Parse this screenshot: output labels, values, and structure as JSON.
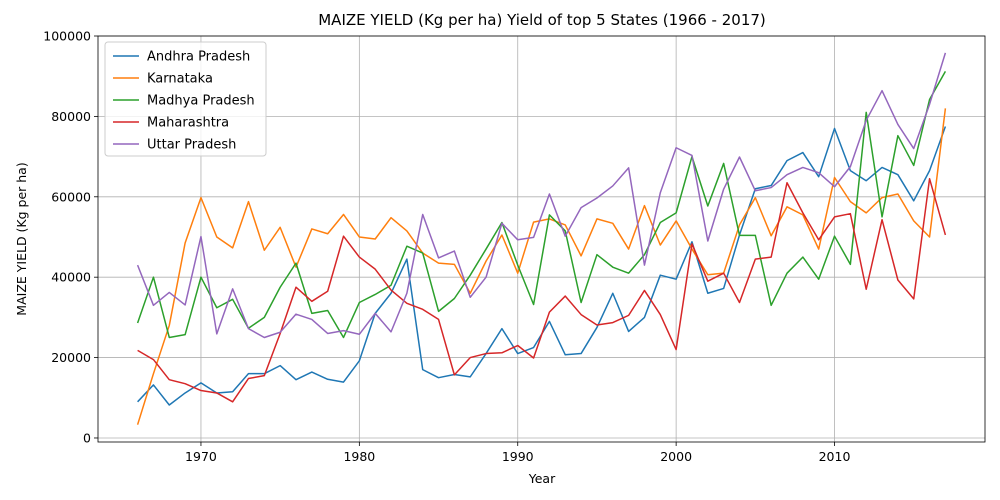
{
  "chart_data": {
    "type": "line",
    "title": "MAIZE YIELD (Kg per ha) Yield of top 5 States (1966 - 2017)",
    "xlabel": "Year",
    "ylabel": "MAIZE YIELD (Kg per ha)",
    "xlim": [
      1963.5,
      2019.5
    ],
    "ylim": [
      -1000,
      100000
    ],
    "xticks": [
      1970,
      1980,
      1990,
      2000,
      2010
    ],
    "yticks": [
      0,
      20000,
      40000,
      60000,
      80000,
      100000
    ],
    "grid": true,
    "legend_position": "top-left",
    "x": [
      1966,
      1967,
      1968,
      1969,
      1970,
      1971,
      1972,
      1973,
      1974,
      1975,
      1976,
      1977,
      1978,
      1979,
      1980,
      1981,
      1982,
      1983,
      1984,
      1985,
      1986,
      1987,
      1988,
      1989,
      1990,
      1991,
      1992,
      1993,
      1994,
      1995,
      1996,
      1997,
      1998,
      1999,
      2000,
      2001,
      2002,
      2003,
      2004,
      2005,
      2006,
      2007,
      2008,
      2009,
      2010,
      2011,
      2012,
      2013,
      2014,
      2015,
      2016,
      2017
    ],
    "series": [
      {
        "name": "Andhra Pradesh",
        "color": "#1f77b4",
        "values": [
          9000,
          13200,
          8200,
          11200,
          13700,
          11200,
          11500,
          16000,
          16000,
          18000,
          14500,
          16400,
          14600,
          13900,
          19200,
          31000,
          36000,
          44500,
          17000,
          15000,
          15800,
          15200,
          21000,
          27200,
          21000,
          22500,
          29000,
          20700,
          21000,
          27500,
          36000,
          26500,
          30000,
          40500,
          39500,
          48800,
          36000,
          37200,
          50500,
          62000,
          62800,
          69000,
          71000,
          65000,
          77000,
          66500,
          64000,
          67300,
          65500,
          59000,
          66500,
          77500
        ]
      },
      {
        "name": "Karnataka",
        "color": "#ff7f0e",
        "values": [
          3300,
          16000,
          28000,
          48500,
          59800,
          50000,
          47300,
          58800,
          46700,
          52400,
          42500,
          52000,
          50800,
          55600,
          50000,
          49500,
          54800,
          51500,
          46000,
          43500,
          43200,
          36000,
          44000,
          50500,
          41000,
          53700,
          54500,
          53000,
          45300,
          54500,
          53400,
          47000,
          57800,
          48000,
          54000,
          47000,
          40600,
          41000,
          53000,
          59800,
          50300,
          57500,
          55500,
          47000,
          64800,
          58800,
          56000,
          59800,
          60700,
          54000,
          50000,
          82000
        ]
      },
      {
        "name": "Madhya Pradesh",
        "color": "#2ca02c",
        "values": [
          28600,
          40000,
          25000,
          25700,
          40000,
          32400,
          34500,
          27300,
          30000,
          37500,
          43500,
          31000,
          31700,
          25000,
          33700,
          35700,
          38000,
          47700,
          46000,
          31500,
          34700,
          40500,
          47000,
          53600,
          43000,
          33200,
          55500,
          51500,
          33700,
          45600,
          42500,
          41000,
          45600,
          53600,
          56000,
          70000,
          57700,
          68300,
          50400,
          50400,
          33000,
          41000,
          45000,
          39500,
          50200,
          43200,
          81000,
          55000,
          75200,
          67800,
          84200,
          91200
        ]
      },
      {
        "name": "Maharashtra",
        "color": "#d62728",
        "values": [
          21800,
          19500,
          14500,
          13500,
          11800,
          11200,
          9000,
          14800,
          15500,
          26000,
          37500,
          34000,
          36500,
          50200,
          45000,
          42000,
          36800,
          33500,
          32000,
          29500,
          15700,
          20000,
          21000,
          21200,
          23000,
          19900,
          31300,
          35300,
          30700,
          28100,
          28700,
          30500,
          36700,
          30700,
          22000,
          48300,
          39000,
          41000,
          33700,
          44500,
          45000,
          63500,
          56000,
          49300,
          55000,
          55800,
          37000,
          54300,
          39300,
          34600,
          64500,
          50500
        ]
      },
      {
        "name": "Uttar Pradesh",
        "color": "#9467bd",
        "values": [
          43000,
          33000,
          36200,
          33100,
          50100,
          25900,
          37100,
          27200,
          25000,
          26300,
          30800,
          29500,
          26000,
          26700,
          25800,
          31000,
          26400,
          36000,
          55600,
          44800,
          46500,
          35000,
          40000,
          53400,
          49300,
          49900,
          60700,
          50200,
          57300,
          59700,
          62700,
          67200,
          43000,
          61000,
          72200,
          70300,
          49000,
          61900,
          69900,
          61500,
          62300,
          65500,
          67300,
          66000,
          62500,
          67500,
          79000,
          86400,
          78000,
          72000,
          83000,
          95800
        ]
      }
    ]
  }
}
